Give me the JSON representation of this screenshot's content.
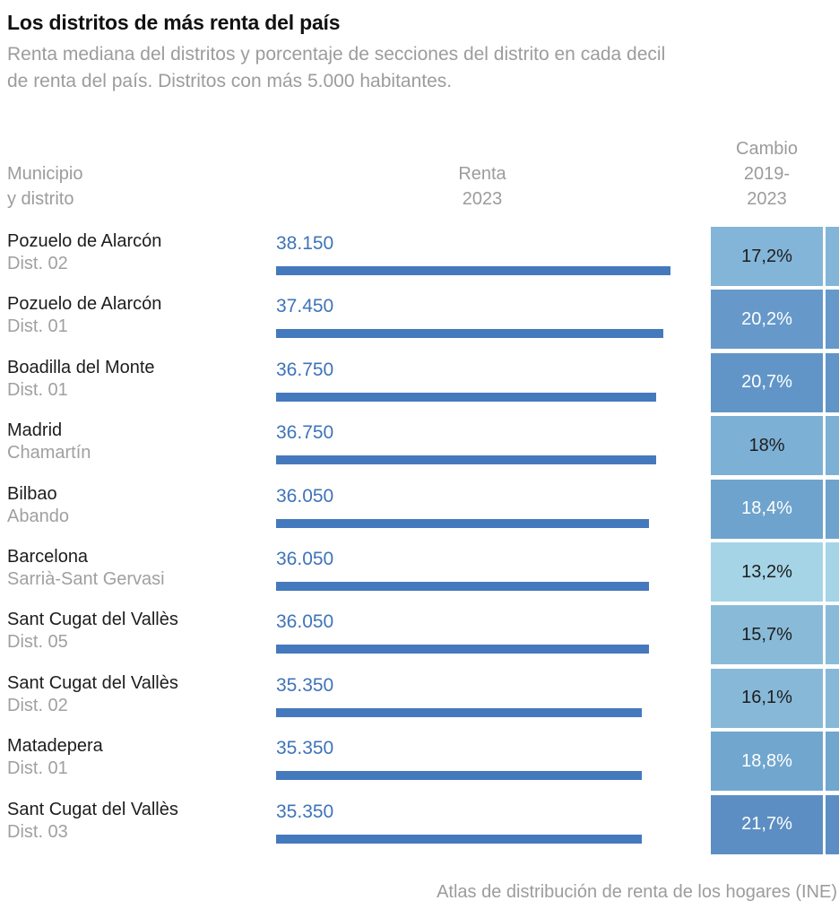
{
  "chart_data": {
    "type": "bar",
    "title": "Los distritos de más renta del país",
    "subtitle_lines": [
      "Renta mediana del distritos y porcentaje de secciones del distrito en cada decil",
      "de renta del país. Distritos con más 5.000 habitantes."
    ],
    "columns": {
      "municipio": [
        "Municipio",
        "y distrito"
      ],
      "renta": [
        "Renta",
        "2023"
      ],
      "cambio": [
        "Cambio",
        "2019-",
        "2023"
      ]
    },
    "xlabel": "Renta 2023",
    "x_max": 38150,
    "bar_color": "#4579bd",
    "value_color": "#3e74b9",
    "rows": [
      {
        "municipio": "Pozuelo de Alarcón",
        "distrito": "Dist. 02",
        "renta": 38150,
        "renta_label": "38.150",
        "cambio": "17,2%",
        "cambio_value": 17.2,
        "cell_color": "#83b5d8",
        "cell_text_color": "#1d1d1d"
      },
      {
        "municipio": "Pozuelo de Alarcón",
        "distrito": "Dist. 01",
        "renta": 37450,
        "renta_label": "37.450",
        "cambio": "20,2%",
        "cambio_value": 20.2,
        "cell_color": "#6699ca",
        "cell_text_color": "#ffffff"
      },
      {
        "municipio": "Boadilla del Monte",
        "distrito": "Dist. 01",
        "renta": 36750,
        "renta_label": "36.750",
        "cambio": "20,7%",
        "cambio_value": 20.7,
        "cell_color": "#6195c7",
        "cell_text_color": "#ffffff"
      },
      {
        "municipio": "Madrid",
        "distrito": "Chamartín",
        "renta": 36750,
        "renta_label": "36.750",
        "cambio": "18%",
        "cambio_value": 18.0,
        "cell_color": "#7db0d5",
        "cell_text_color": "#1d1d1d"
      },
      {
        "municipio": "Bilbao",
        "distrito": "Abando",
        "renta": 36050,
        "renta_label": "36.050",
        "cambio": "18,4%",
        "cambio_value": 18.4,
        "cell_color": "#6ea3cd",
        "cell_text_color": "#ffffff"
      },
      {
        "municipio": "Barcelona",
        "distrito": "Sarrià-Sant Gervasi",
        "renta": 36050,
        "renta_label": "36.050",
        "cambio": "13,2%",
        "cambio_value": 13.2,
        "cell_color": "#a5d4e6",
        "cell_text_color": "#1d1d1d"
      },
      {
        "municipio": "Sant Cugat del Vallès",
        "distrito": "Dist. 05",
        "renta": 36050,
        "renta_label": "36.050",
        "cambio": "15,7%",
        "cambio_value": 15.7,
        "cell_color": "#89bbd9",
        "cell_text_color": "#1d1d1d"
      },
      {
        "municipio": "Sant Cugat del Vallès",
        "distrito": "Dist. 02",
        "renta": 35350,
        "renta_label": "35.350",
        "cambio": "16,1%",
        "cambio_value": 16.1,
        "cell_color": "#87b8d8",
        "cell_text_color": "#1d1d1d"
      },
      {
        "municipio": "Matadepera",
        "distrito": "Dist. 01",
        "renta": 35350,
        "renta_label": "35.350",
        "cambio": "18,8%",
        "cambio_value": 18.8,
        "cell_color": "#71a6ce",
        "cell_text_color": "#ffffff"
      },
      {
        "municipio": "Sant Cugat del Vallès",
        "distrito": "Dist. 03",
        "renta": 35350,
        "renta_label": "35.350",
        "cambio": "21,7%",
        "cambio_value": 21.7,
        "cell_color": "#5c8ec3",
        "cell_text_color": "#ffffff"
      }
    ],
    "source": "Atlas de distribución de renta de los hogares (INE)"
  }
}
